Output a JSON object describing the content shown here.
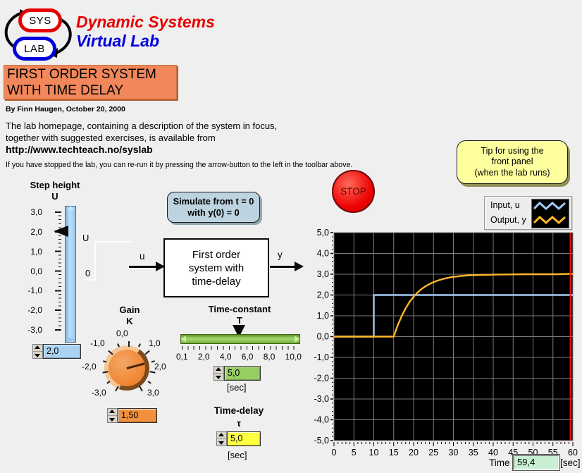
{
  "header": {
    "logo_top": "SYS",
    "logo_bottom": "LAB",
    "brand_line1": "Dynamic Systems",
    "brand_line2": "Virtual Lab",
    "title_line1": "FIRST ORDER SYSTEM",
    "title_line2": "WITH TIME DELAY",
    "byline": "By  Finn Haugen,  October 20, 2000"
  },
  "intro": {
    "line1": "The lab homepage, containing a description of the system in focus,",
    "line2": "together with suggested exercises, is available from",
    "url": "http://www.techteach.no/syslab",
    "note": "If you have stopped the lab, you can re-run it by pressing the arrow-button to the left in the toolbar above."
  },
  "step_height": {
    "label1": "Step height",
    "label2": "U",
    "scale_labels": [
      "3,0",
      "2,0",
      "1,0",
      "0,0",
      "-1,0",
      "-2,0",
      "-3,0"
    ],
    "value": "2,0",
    "current": 2.0,
    "min": -3.0,
    "max": 3.0
  },
  "step_signal": {
    "high_label": "U",
    "low_label": "0"
  },
  "diagram": {
    "input_label": "u",
    "output_label": "y",
    "block_line1": "First order",
    "block_line2": "system with",
    "block_line3": "time-delay"
  },
  "simulate_button": {
    "line1": "Simulate from t = 0",
    "line2": "with y(0) = 0"
  },
  "gain": {
    "label1": "Gain",
    "label2": "K",
    "scale_labels": [
      "0,0",
      "-1,0",
      "1,0",
      "-2,0",
      "2,0",
      "-3,0",
      "3,0"
    ],
    "value": "1,50",
    "current": 1.5,
    "min": -3.0,
    "max": 3.0
  },
  "time_constant": {
    "label1": "Time-constant",
    "label2": "T",
    "scale_labels": [
      "0,1",
      "2,0",
      "4,0",
      "6,0",
      "8,0",
      "10,0"
    ],
    "value": "5,0",
    "unit": "[sec]",
    "current": 5.0,
    "min": 0.1,
    "max": 10.0
  },
  "time_delay": {
    "label1": "Time-delay",
    "label2": "τ",
    "value": "5,0",
    "unit": "[sec]"
  },
  "stop_button": {
    "label": "STOP"
  },
  "tip_button": {
    "line1": "Tip for using the",
    "line2": "front panel",
    "line3": "(when the lab runs)"
  },
  "legend": {
    "items": [
      {
        "label": "Input, u",
        "color": "#a5c9f3"
      },
      {
        "label": "Output, y",
        "color": "#fdb827"
      }
    ]
  },
  "time_readout": {
    "label": "Time",
    "value": "59,4",
    "unit": "[sec]"
  },
  "chart_data": {
    "type": "line",
    "title": "",
    "xlabel": "Time [sec]",
    "ylabel": "",
    "xlim": [
      0,
      60
    ],
    "ylim": [
      -5,
      5
    ],
    "x_ticks": [
      0,
      5,
      10,
      15,
      20,
      25,
      30,
      35,
      40,
      45,
      50,
      55,
      60
    ],
    "y_tick_labels": [
      "5,0",
      "4,0",
      "3,0",
      "2,0",
      "1,0",
      "0,0",
      "-1,0",
      "-2,0",
      "-3,0",
      "-4,0",
      "-5,0"
    ],
    "grid": true,
    "background": "#000000",
    "grid_color": "#7d7d7d",
    "cursor_time": 59.4,
    "cursor_color": "#ff1010",
    "legend_position": "top-right",
    "series": [
      {
        "name": "Input, u",
        "color": "#a5c9f3",
        "points": [
          [
            0,
            0
          ],
          [
            10,
            0
          ],
          [
            10,
            2
          ],
          [
            60,
            2
          ]
        ]
      },
      {
        "name": "Output, y",
        "color": "#fdb827",
        "points": [
          [
            0,
            0
          ],
          [
            15,
            0
          ],
          [
            16,
            0.54
          ],
          [
            17,
            0.99
          ],
          [
            18,
            1.36
          ],
          [
            19,
            1.67
          ],
          [
            20,
            1.92
          ],
          [
            21,
            2.12
          ],
          [
            22,
            2.29
          ],
          [
            23,
            2.42
          ],
          [
            24,
            2.53
          ],
          [
            25,
            2.62
          ],
          [
            26,
            2.69
          ],
          [
            27,
            2.75
          ],
          [
            28,
            2.8
          ],
          [
            29,
            2.84
          ],
          [
            30,
            2.87
          ],
          [
            32,
            2.92
          ],
          [
            34,
            2.95
          ],
          [
            36,
            2.96
          ],
          [
            38,
            2.97
          ],
          [
            40,
            2.98
          ],
          [
            44,
            2.99
          ],
          [
            48,
            3.0
          ],
          [
            52,
            3.0
          ],
          [
            56,
            3.0
          ],
          [
            60,
            3.02
          ]
        ]
      }
    ]
  }
}
